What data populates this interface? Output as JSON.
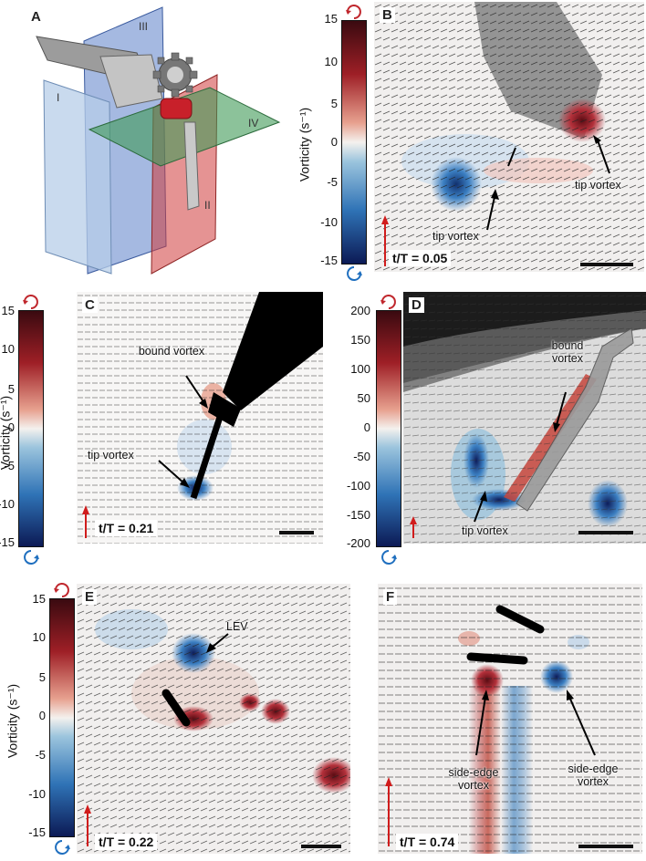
{
  "panels": {
    "A": {
      "letter": "A",
      "planes": [
        "I",
        "II",
        "III",
        "IV"
      ]
    },
    "B": {
      "letter": "B",
      "ticks": [
        "15",
        "10",
        "5",
        "0",
        "-5",
        "-10",
        "-15"
      ],
      "ylabel": "Vorticity (s⁻¹)",
      "annotations": [
        "tip vortex",
        "tip vortex"
      ],
      "time": "t/T = 0.05"
    },
    "C": {
      "letter": "C",
      "ticks": [
        "15",
        "10",
        "5",
        "0",
        "-5",
        "-10",
        "-15"
      ],
      "ylabel": "Vorticity (s⁻¹)",
      "annotations": [
        "bound vortex",
        "tip vortex"
      ],
      "time": "t/T = 0.21"
    },
    "D": {
      "letter": "D",
      "ticks": [
        "200",
        "150",
        "100",
        "50",
        "0",
        "-50",
        "-100",
        "-150",
        "-200"
      ],
      "annotations": [
        "bound vortex",
        "tip vortex"
      ]
    },
    "E": {
      "letter": "E",
      "ticks": [
        "15",
        "10",
        "5",
        "0",
        "-5",
        "-10",
        "-15"
      ],
      "ylabel": "Vorticity (s⁻¹)",
      "annotations": [
        "LEV"
      ],
      "time": "t/T = 0.22"
    },
    "F": {
      "letter": "F",
      "annotations": [
        "side-edge vortex",
        "side-edge vortex"
      ],
      "time": "t/T = 0.74"
    }
  },
  "colors": {
    "positive": "#9e1f26",
    "negative": "#2f73b6",
    "rotation_icon_top": "#c0272d",
    "rotation_icon_bottom": "#1f6fbf"
  }
}
